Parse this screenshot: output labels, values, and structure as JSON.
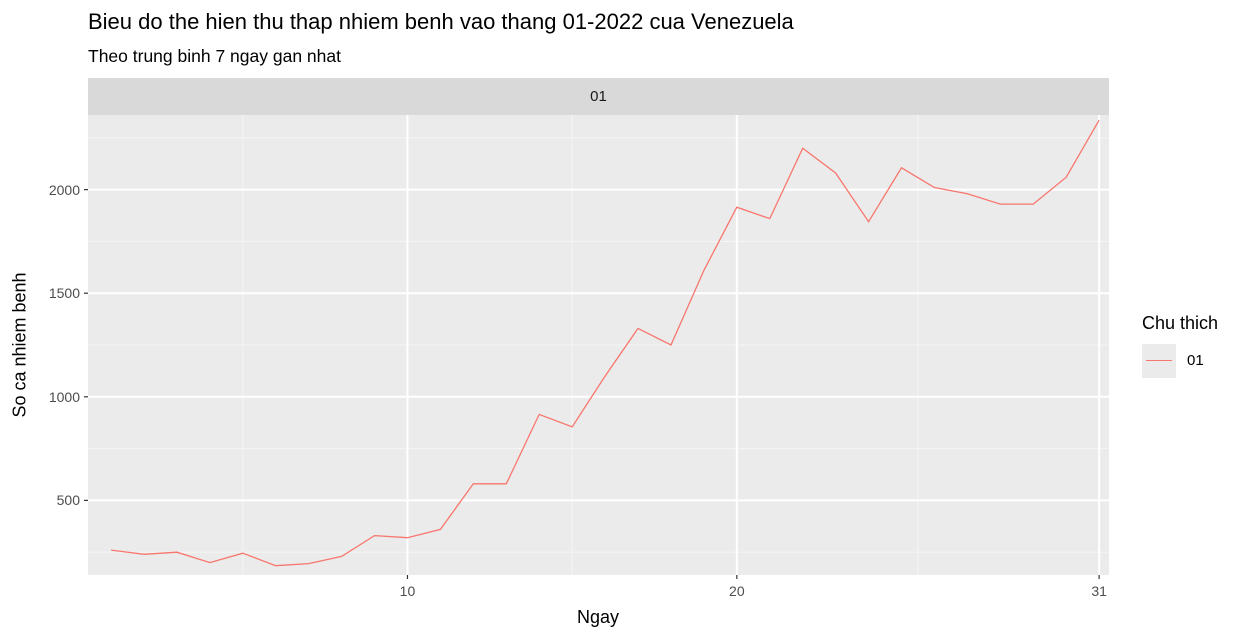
{
  "chart_data": {
    "type": "line",
    "title": "Bieu do the hien thu thap nhiem benh vao thang 01-2022 cua Venezuela",
    "subtitle": "Theo trung binh 7 ngay gan nhat",
    "facet": "01",
    "xlabel": "Ngay",
    "ylabel": "So ca nhiem benh",
    "x_ticks": [
      10,
      20,
      31
    ],
    "y_ticks": [
      500,
      1000,
      1500,
      2000
    ],
    "xlim": [
      0.3,
      31.3
    ],
    "ylim": [
      140,
      2360
    ],
    "grid": true,
    "legend": {
      "title": "Chu thich",
      "position": "right",
      "entries": [
        "01"
      ]
    },
    "series": [
      {
        "name": "01",
        "color": "#f8766d",
        "x": [
          1,
          2,
          3,
          4,
          5,
          6,
          7,
          8,
          9,
          10,
          11,
          12,
          13,
          14,
          15,
          16,
          17,
          18,
          19,
          20,
          21,
          22,
          23,
          24,
          25,
          26,
          27,
          28,
          29,
          30,
          31
        ],
        "values": [
          260,
          240,
          250,
          200,
          245,
          185,
          195,
          230,
          330,
          320,
          360,
          580,
          580,
          915,
          855,
          1100,
          1330,
          1250,
          1610,
          1915,
          1860,
          2200,
          2080,
          1845,
          2105,
          2010,
          1980,
          1930,
          1930,
          2060,
          2335
        ]
      }
    ]
  }
}
